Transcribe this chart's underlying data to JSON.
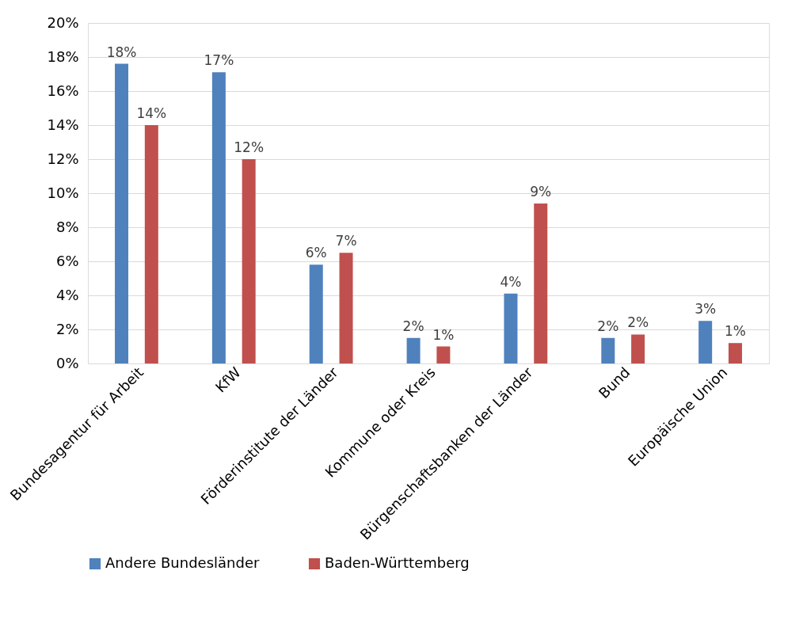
{
  "chart_data": {
    "type": "bar",
    "categories": [
      "Bundesagentur für Arbeit",
      "KfW",
      "Förderinstitute der Länder",
      "Kommune oder Kreis",
      "Bürgenschaftsbanken der Länder",
      "Bund",
      "Europäische Union"
    ],
    "series": [
      {
        "name": "Andere Bundesländer",
        "color": "#4f81bd",
        "values": [
          17.6,
          17.1,
          5.8,
          1.5,
          4.1,
          1.5,
          2.5
        ],
        "value_labels": [
          "18%",
          "17%",
          "6%",
          "2%",
          "4%",
          "2%",
          "3%"
        ]
      },
      {
        "name": "Baden-Württemberg",
        "color": "#c0504d",
        "values": [
          14.0,
          12.0,
          6.5,
          1.0,
          9.4,
          1.7,
          1.2
        ],
        "value_labels": [
          "14%",
          "12%",
          "7%",
          "1%",
          "9%",
          "2%",
          "1%"
        ]
      }
    ],
    "ylim": [
      0,
      20
    ],
    "yticks": [
      {
        "value": 0,
        "label": "0%"
      },
      {
        "value": 2,
        "label": "2%"
      },
      {
        "value": 4,
        "label": "4%"
      },
      {
        "value": 6,
        "label": "6%"
      },
      {
        "value": 8,
        "label": "8%"
      },
      {
        "value": 10,
        "label": "10%"
      },
      {
        "value": 12,
        "label": "12%"
      },
      {
        "value": 14,
        "label": "14%"
      },
      {
        "value": 16,
        "label": "16%"
      },
      {
        "value": 18,
        "label": "18%"
      },
      {
        "value": 20,
        "label": "20%"
      }
    ],
    "grid": "y",
    "legend": "bottom"
  }
}
